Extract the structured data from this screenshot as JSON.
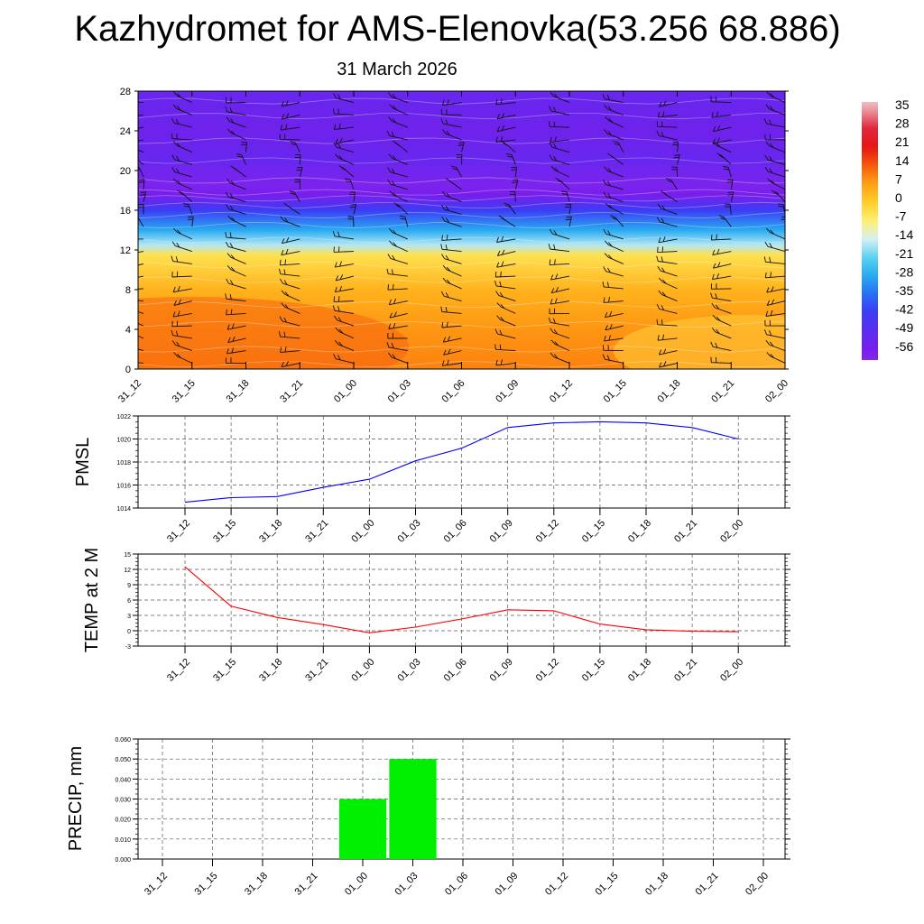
{
  "title": "Kazhydromet for AMS-Elenovka(53.256 68.886)",
  "subtitle": "31 March 2026",
  "time_labels": [
    "31_12",
    "31_15",
    "31_18",
    "31_21",
    "01_00",
    "01_03",
    "01_06",
    "01_09",
    "01_12",
    "01_15",
    "01_18",
    "01_21",
    "02_00"
  ],
  "colors": {
    "pmsl_line": "#0000ff",
    "temp_line": "#ff0000",
    "precip_bar": "#00ee00",
    "grid": "#555555"
  },
  "chart_data": [
    {
      "type": "heatmap",
      "name": "cross-section temperature",
      "x": [
        "31_12",
        "31_15",
        "31_18",
        "31_21",
        "01_00",
        "01_03",
        "01_06",
        "01_09",
        "01_12",
        "01_15",
        "01_18",
        "01_21",
        "02_00"
      ],
      "y_ticks": [
        0,
        4,
        8,
        12,
        16,
        20,
        24,
        28
      ],
      "ylim": [
        0,
        28
      ],
      "colorbar": {
        "labels": [
          "35",
          "28",
          "21",
          "14",
          "7",
          "0",
          "-7",
          "-14",
          "-21",
          "-28",
          "-35",
          "-42",
          "-49",
          "-56"
        ],
        "range": [
          -60,
          38
        ]
      },
      "temperature_by_level": [
        {
          "level": 0,
          "value": 10
        },
        {
          "level": 4,
          "value": 8
        },
        {
          "level": 8,
          "value": 4
        },
        {
          "level": 11.5,
          "value": -4
        },
        {
          "level": 12.5,
          "value": -16
        },
        {
          "level": 14,
          "value": -28
        },
        {
          "level": 16,
          "value": -42
        },
        {
          "level": 17.5,
          "value": -56
        },
        {
          "level": 18.5,
          "value": -58
        },
        {
          "level": 21,
          "value": -52
        },
        {
          "level": 24,
          "value": -54
        },
        {
          "level": 28,
          "value": -52
        }
      ],
      "overlay": "wind barbs"
    },
    {
      "type": "line",
      "name": "PMSL",
      "ylabel": "PMSL",
      "x": [
        "31_12",
        "31_15",
        "31_18",
        "31_21",
        "01_00",
        "01_03",
        "01_06",
        "01_09",
        "01_12",
        "01_15",
        "01_18",
        "01_21",
        "02_00"
      ],
      "values": [
        1014.5,
        1014.9,
        1015.0,
        1015.8,
        1016.5,
        1018.1,
        1019.2,
        1021.0,
        1021.4,
        1021.5,
        1021.4,
        1021.0,
        1020.0
      ],
      "ylim": [
        1014,
        1022
      ],
      "y_ticks": [
        "1014",
        "1016",
        "1018",
        "1020",
        "1022"
      ],
      "y_tick_values": [
        1014,
        1016,
        1018,
        1020,
        1022
      ],
      "grid": true
    },
    {
      "type": "line",
      "name": "TEMP",
      "ylabel": "TEMP at 2 M",
      "x": [
        "31_12",
        "31_15",
        "31_18",
        "31_21",
        "01_00",
        "01_03",
        "01_06",
        "01_09",
        "01_12",
        "01_15",
        "01_18",
        "01_21",
        "02_00"
      ],
      "values": [
        12.5,
        4.8,
        2.6,
        1.2,
        -0.4,
        0.7,
        2.3,
        4.1,
        3.9,
        1.3,
        0.2,
        -0.1,
        -0.2
      ],
      "ylim": [
        -3,
        15
      ],
      "y_ticks": [
        "-3",
        "0",
        "3",
        "6",
        "9",
        "12",
        "15"
      ],
      "y_tick_values": [
        -3,
        0,
        3,
        6,
        9,
        12,
        15
      ],
      "grid": true
    },
    {
      "type": "bar",
      "name": "PRECIP",
      "ylabel": "PRECIP, mm",
      "categories": [
        "31_12",
        "31_15",
        "31_18",
        "31_21",
        "01_00",
        "01_03",
        "01_06",
        "01_09",
        "01_12",
        "01_15",
        "01_18",
        "01_21",
        "02_00"
      ],
      "values": [
        0,
        0,
        0,
        0,
        0.03,
        0.05,
        0,
        0,
        0,
        0,
        0,
        0,
        0
      ],
      "ylim": [
        0,
        0.06
      ],
      "y_ticks": [
        "0.000",
        "0.010",
        "0.020",
        "0.030",
        "0.040",
        "0.050",
        "0.060"
      ],
      "y_tick_values": [
        0,
        0.01,
        0.02,
        0.03,
        0.04,
        0.05,
        0.06
      ],
      "grid": true
    }
  ]
}
